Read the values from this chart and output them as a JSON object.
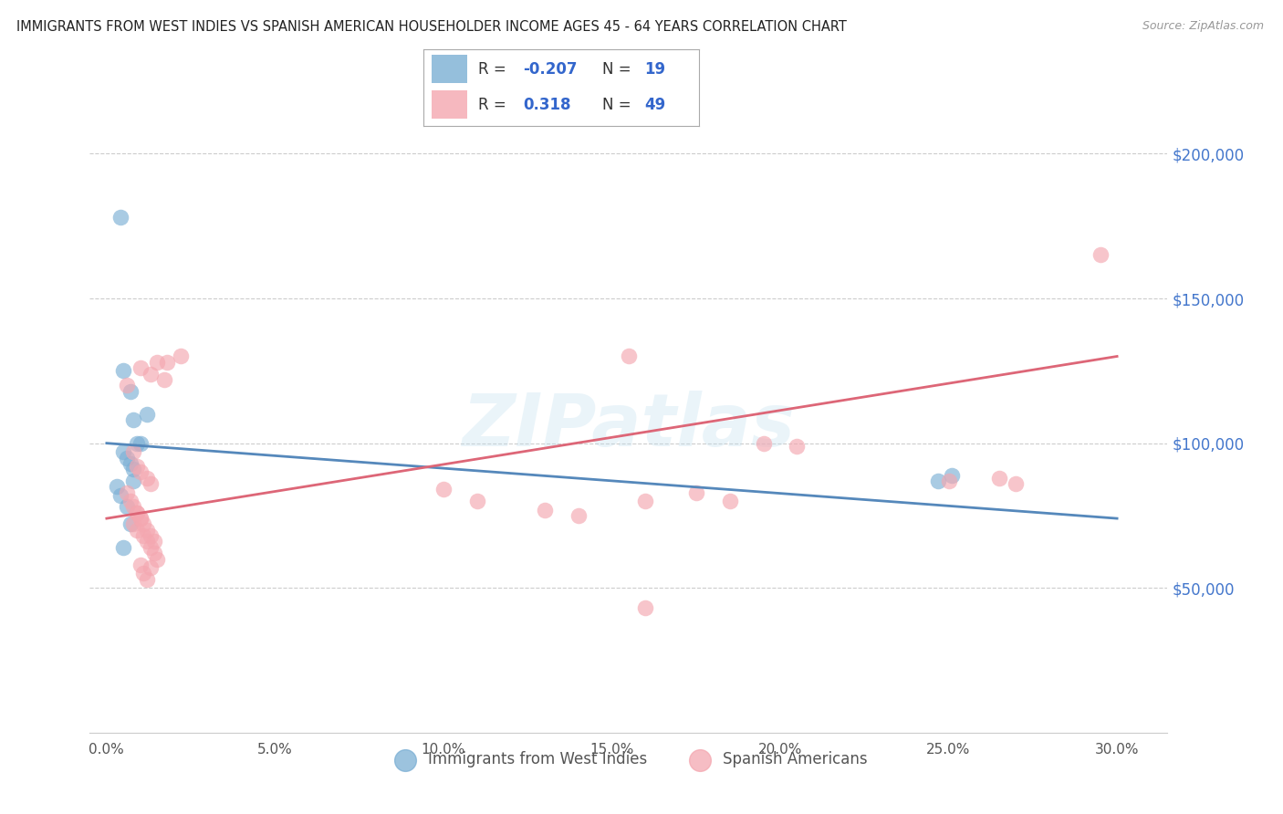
{
  "title": "IMMIGRANTS FROM WEST INDIES VS SPANISH AMERICAN HOUSEHOLDER INCOME AGES 45 - 64 YEARS CORRELATION CHART",
  "source": "Source: ZipAtlas.com",
  "xlabel_ticks": [
    "0.0%",
    "5.0%",
    "10.0%",
    "15.0%",
    "20.0%",
    "25.0%",
    "30.0%"
  ],
  "xlabel_vals": [
    0.0,
    0.05,
    0.1,
    0.15,
    0.2,
    0.25,
    0.3
  ],
  "ylabel_ticks": [
    "$50,000",
    "$100,000",
    "$150,000",
    "$200,000"
  ],
  "ylabel_vals": [
    50000,
    100000,
    150000,
    200000
  ],
  "ylim": [
    0,
    225000
  ],
  "xlim": [
    -0.005,
    0.315
  ],
  "legend_label1": "Immigrants from West Indies",
  "legend_label2": "Spanish Americans",
  "r1": "-0.207",
  "n1": "19",
  "r2": "0.318",
  "n2": "49",
  "watermark": "ZIPatlas",
  "blue_color": "#7BAFD4",
  "pink_color": "#F4A7B0",
  "blue_line_color": "#5588BB",
  "pink_line_color": "#DD6677",
  "blue_line_x0": 0.0,
  "blue_line_y0": 100000,
  "blue_line_x1": 0.3,
  "blue_line_y1": 74000,
  "pink_line_x0": 0.0,
  "pink_line_y0": 74000,
  "pink_line_x1": 0.3,
  "pink_line_y1": 130000,
  "west_indies_x": [
    0.004,
    0.005,
    0.007,
    0.008,
    0.009,
    0.01,
    0.005,
    0.006,
    0.007,
    0.008,
    0.003,
    0.004,
    0.006,
    0.007,
    0.005,
    0.008,
    0.012,
    0.247,
    0.251
  ],
  "west_indies_y": [
    178000,
    125000,
    118000,
    108000,
    100000,
    100000,
    97000,
    95000,
    93000,
    91000,
    85000,
    82000,
    78000,
    72000,
    64000,
    87000,
    110000,
    87000,
    89000
  ],
  "spanish_x": [
    0.01,
    0.015,
    0.006,
    0.013,
    0.018,
    0.022,
    0.017,
    0.008,
    0.009,
    0.01,
    0.012,
    0.013,
    0.006,
    0.007,
    0.008,
    0.009,
    0.01,
    0.008,
    0.009,
    0.011,
    0.012,
    0.013,
    0.014,
    0.015,
    0.011,
    0.012,
    0.009,
    0.01,
    0.011,
    0.012,
    0.013,
    0.014,
    0.01,
    0.013,
    0.1,
    0.11,
    0.13,
    0.14,
    0.155,
    0.16,
    0.175,
    0.185,
    0.195,
    0.205,
    0.25,
    0.265,
    0.27,
    0.295,
    0.16
  ],
  "spanish_y": [
    126000,
    128000,
    120000,
    124000,
    128000,
    130000,
    122000,
    97000,
    92000,
    90000,
    88000,
    86000,
    83000,
    80000,
    78000,
    76000,
    74000,
    72000,
    70000,
    68000,
    66000,
    64000,
    62000,
    60000,
    55000,
    53000,
    76000,
    74000,
    72000,
    70000,
    68000,
    66000,
    58000,
    57000,
    84000,
    80000,
    77000,
    75000,
    130000,
    80000,
    83000,
    80000,
    100000,
    99000,
    87000,
    88000,
    86000,
    165000,
    43000
  ]
}
